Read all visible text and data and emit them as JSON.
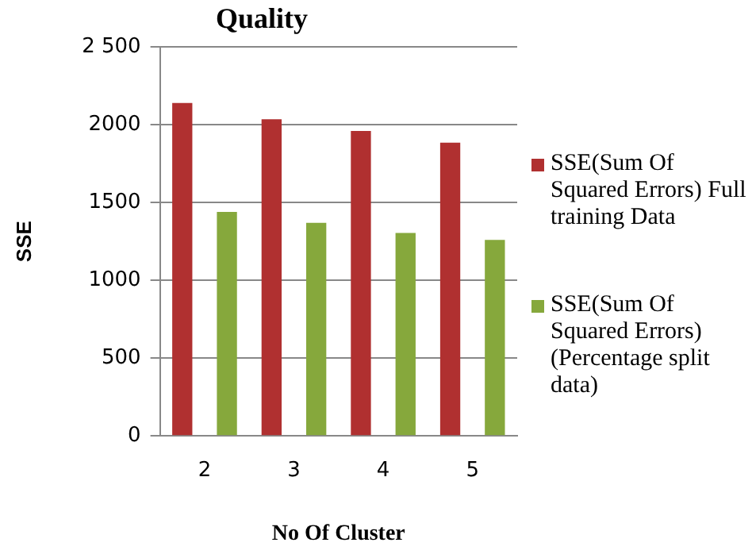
{
  "chart_data": {
    "type": "bar",
    "title": "Quality",
    "xlabel": "No Of Cluster",
    "ylabel": "SSE",
    "categories": [
      "2",
      "3",
      "4",
      "5"
    ],
    "series": [
      {
        "name": "SSE(Sum Of Squared Errors) Full training Data",
        "color": "#b03030",
        "values": [
          2140,
          2035,
          1960,
          1885
        ]
      },
      {
        "name": "SSE(Sum Of Squared Errors) (Percentage split data)",
        "color": "#86a83c",
        "values": [
          1440,
          1370,
          1305,
          1260
        ]
      }
    ],
    "ylim": [
      0,
      2500
    ],
    "yticks": [
      0,
      500,
      1000,
      1500,
      2000,
      {
        "value": 2500,
        "label": "2 500"
      }
    ],
    "grid": "y",
    "legend": "right"
  }
}
